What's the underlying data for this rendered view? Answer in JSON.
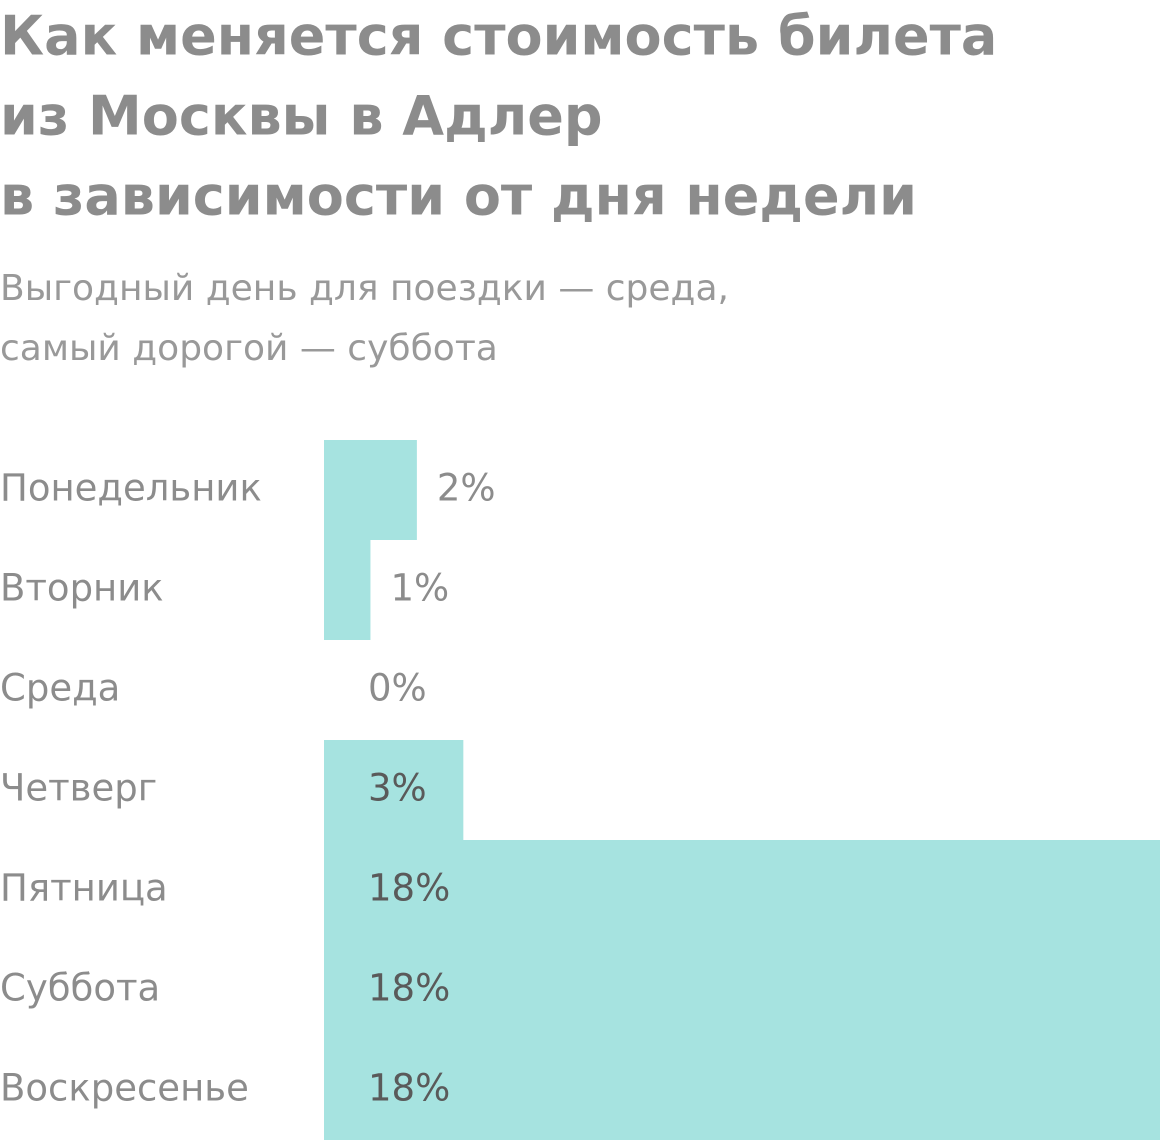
{
  "chart_data": {
    "type": "bar",
    "orientation": "horizontal",
    "title": [
      "Как меняется стоимость билета",
      "из Москвы в Адлер",
      "в зависимости от дня недели"
    ],
    "subtitle": [
      "Выгодный день для поездки — среда,",
      "самый дорогой — суббота"
    ],
    "categories": [
      "Понедельник",
      "Вторник",
      "Среда",
      "Четверг",
      "Пятница",
      "Суббота",
      "Воскресенье"
    ],
    "values": [
      2,
      1,
      0,
      3,
      18,
      18,
      18
    ],
    "value_labels": [
      "2%",
      "1%",
      "0%",
      "3%",
      "18%",
      "18%",
      "18%"
    ],
    "color": "#a6e3e0",
    "xlim": [
      0,
      18
    ]
  }
}
